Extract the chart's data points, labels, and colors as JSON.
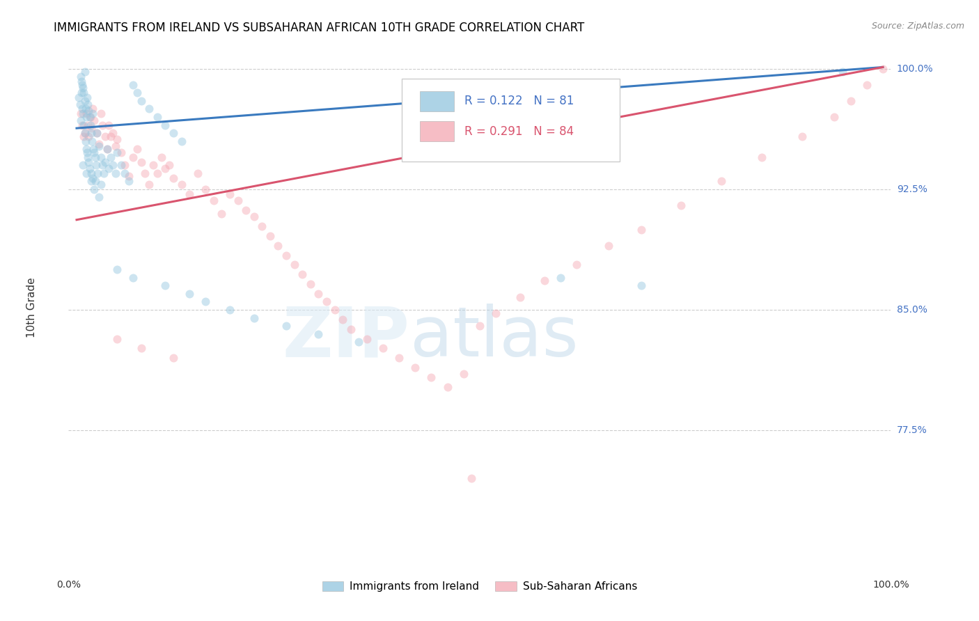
{
  "title": "IMMIGRANTS FROM IRELAND VS SUBSAHARAN AFRICAN 10TH GRADE CORRELATION CHART",
  "source": "Source: ZipAtlas.com",
  "ylabel": "10th Grade",
  "blue_R": 0.122,
  "blue_N": 81,
  "pink_R": 0.291,
  "pink_N": 84,
  "legend_label_blue": "Immigrants from Ireland",
  "legend_label_pink": "Sub-Saharan Africans",
  "blue_color": "#92c5de",
  "pink_color": "#f4a7b2",
  "blue_line_color": "#3a7abf",
  "pink_line_color": "#d9546e",
  "y_min": 0.695,
  "y_max": 1.008,
  "x_min": -0.01,
  "x_max": 1.01,
  "ytick_positions": [
    0.775,
    0.85,
    0.925,
    1.0
  ],
  "ytick_labels": [
    "77.5%",
    "85.0%",
    "92.5%",
    "100.0%"
  ],
  "blue_line_x0": 0.0,
  "blue_line_x1": 1.0,
  "blue_line_y0": 0.963,
  "blue_line_y1": 1.001,
  "pink_line_x0": 0.0,
  "pink_line_x1": 1.0,
  "pink_line_y0": 0.906,
  "pink_line_y1": 1.001,
  "grid_color": "#cccccc",
  "background_color": "#ffffff",
  "scatter_size": 75,
  "scatter_alpha": 0.45,
  "title_fontsize": 12,
  "source_fontsize": 9,
  "tick_label_color": "#4472c4",
  "axis_label_color": "#333333",
  "bottom_label_color": "#333333"
}
